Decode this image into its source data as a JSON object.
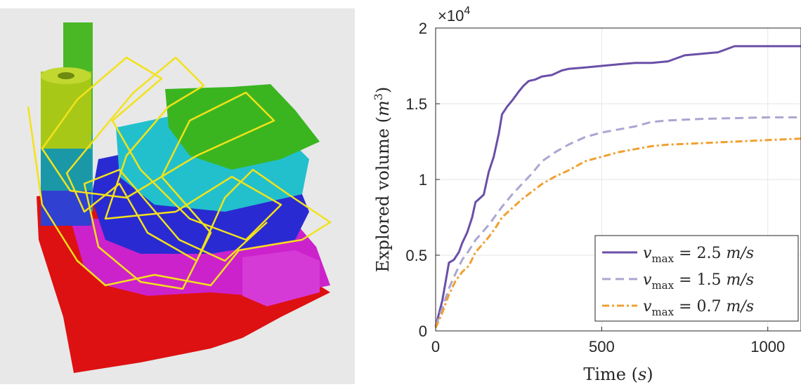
{
  "chart_data": {
    "type": "line",
    "title": "",
    "xlabel": "Time (s)",
    "ylabel": "Explored volume (m³)",
    "xlim": [
      0,
      1100
    ],
    "ylim": [
      0,
      20000
    ],
    "y_exponent_label": "×10",
    "y_exponent_power": "4",
    "x_ticks": [
      0,
      500,
      1000
    ],
    "x_tick_labels": [
      "0",
      "500",
      "1000"
    ],
    "y_ticks": [
      0,
      5000,
      10000,
      15000,
      20000
    ],
    "y_tick_labels": [
      "0",
      "0.5",
      "1",
      "1.5",
      "2"
    ],
    "grid": true,
    "legend_position": "bottom-right",
    "series": [
      {
        "name": "v_max = 2.5 m/s",
        "color": "#6a4fa8",
        "dash": "solid",
        "x": [
          0,
          20,
          40,
          55,
          70,
          80,
          95,
          110,
          120,
          130,
          145,
          160,
          175,
          190,
          200,
          215,
          230,
          250,
          265,
          280,
          300,
          320,
          350,
          380,
          400,
          450,
          500,
          550,
          600,
          650,
          700,
          750,
          800,
          850,
          900,
          950,
          1000,
          1050,
          1100
        ],
        "y": [
          300,
          2000,
          4500,
          4700,
          5200,
          5800,
          6500,
          7500,
          8500,
          8700,
          9000,
          10500,
          11500,
          13000,
          14300,
          14800,
          15200,
          15800,
          16200,
          16500,
          16600,
          16800,
          16900,
          17200,
          17300,
          17400,
          17500,
          17600,
          17700,
          17700,
          17800,
          18200,
          18300,
          18400,
          18800,
          18800,
          18800,
          18800,
          18800
        ]
      },
      {
        "name": "v_max = 1.5 m/s",
        "color": "#aba6d1",
        "dash": "dashed",
        "x": [
          0,
          20,
          40,
          60,
          80,
          100,
          120,
          140,
          160,
          180,
          200,
          230,
          260,
          290,
          320,
          360,
          400,
          450,
          500,
          550,
          600,
          650,
          700,
          800,
          900,
          1000,
          1100
        ],
        "y": [
          300,
          1500,
          2800,
          3800,
          4700,
          5300,
          6000,
          6500,
          7000,
          7600,
          8200,
          9000,
          9700,
          10400,
          11200,
          11800,
          12300,
          12800,
          13100,
          13300,
          13500,
          13800,
          13900,
          14000,
          14050,
          14100,
          14100
        ]
      },
      {
        "name": "v_max = 0.7 m/s",
        "color": "#f0a030",
        "dash": "dashdot",
        "x": [
          0,
          20,
          40,
          60,
          80,
          100,
          120,
          140,
          160,
          180,
          200,
          230,
          260,
          290,
          320,
          360,
          400,
          450,
          500,
          550,
          600,
          650,
          700,
          800,
          900,
          1000,
          1100
        ],
        "y": [
          200,
          1200,
          2400,
          3300,
          3900,
          4300,
          5200,
          5700,
          6200,
          6800,
          7500,
          8100,
          8700,
          9200,
          9700,
          10200,
          10600,
          11200,
          11500,
          11800,
          12000,
          12200,
          12300,
          12400,
          12500,
          12600,
          12700
        ]
      }
    ]
  },
  "legend": {
    "entries": [
      {
        "var": "v",
        "sub": "max",
        "rest": " = 2.5 ",
        "unit": "m/s"
      },
      {
        "var": "v",
        "sub": "max",
        "rest": " = 1.5 ",
        "unit": "m/s"
      },
      {
        "var": "v",
        "sub": "max",
        "rest": " = 0.7 ",
        "unit": "m/s"
      }
    ]
  },
  "axis_text": {
    "ylabel_main": "Explored volume (",
    "ylabel_var": "m",
    "ylabel_pow": "3",
    "ylabel_close": ")",
    "xlabel_main": "Time (",
    "xlabel_var": "s",
    "xlabel_close": ")"
  },
  "scene": {
    "colors": {
      "floor": "#dd1111",
      "magenta": "#d020d0",
      "blue": "#2525d0",
      "cyan": "#20c8d0",
      "green": "#35b020",
      "yellowgreen": "#a8c818",
      "trajectory": "#f2e21a"
    }
  }
}
